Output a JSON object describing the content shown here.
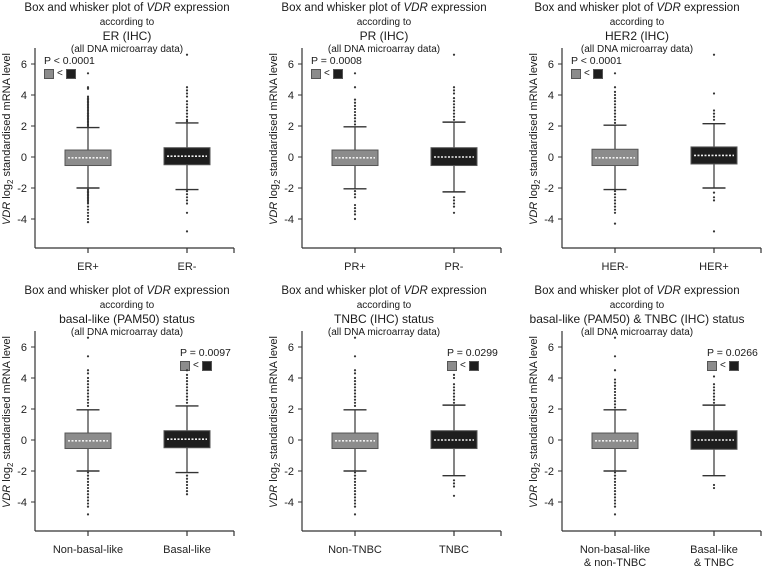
{
  "colors": {
    "group1": "#8c8c8c",
    "group2": "#1e1e1e",
    "median": "#f0f0f0",
    "axis": "#333333"
  },
  "common": {
    "title_prefix": "Box and whisker plot of ",
    "title_gene": "VDR",
    "title_suffix": " expression",
    "according": "according to",
    "dataset": "(all DNA microarray data)",
    "ylabel_gene": "VDR",
    "ylabel_log": " log",
    "ylabel_sub": "2",
    "ylabel_rest": " standardised mRNA level",
    "legend_lt": "<"
  },
  "chart_data": [
    {
      "type": "box",
      "subtitle": "ER (IHC)",
      "ylabel": "VDR log2 standardised mRNA level",
      "yticks": [
        6,
        4,
        2,
        0,
        -2,
        -4
      ],
      "ylim": [
        -5.9,
        7
      ],
      "pvalue": "P < 0.0001",
      "legend_position": "top-left",
      "categories": [
        "ER+",
        "ER-"
      ],
      "groups": [
        {
          "name": "ER+",
          "median": -0.05,
          "q1": -0.55,
          "q3": 0.45,
          "whisker_low": -2.0,
          "whisker_high": 1.9,
          "outliers": [
            5.4,
            4.5,
            4.4,
            3.9,
            3.8,
            3.7,
            3.6,
            3.5,
            3.4,
            3.3,
            3.2,
            3.1,
            3.0,
            2.9,
            2.8,
            2.7,
            2.6,
            2.5,
            2.4,
            2.3,
            2.2,
            2.1,
            2.0,
            -2.1,
            -2.2,
            -2.3,
            -2.4,
            -2.5,
            -2.6,
            -2.7,
            -2.8,
            -2.9,
            -3.0,
            -3.2,
            -3.4,
            -3.6,
            -3.8,
            -4.0,
            -4.2
          ]
        },
        {
          "name": "ER-",
          "median": 0.05,
          "q1": -0.5,
          "q3": 0.6,
          "whisker_low": -2.1,
          "whisker_high": 2.2,
          "outliers": [
            6.6,
            4.5,
            4.3,
            4.1,
            3.9,
            3.6,
            3.4,
            3.2,
            3.0,
            2.8,
            2.6,
            2.4,
            2.3,
            -2.2,
            -2.4,
            -2.6,
            -2.8,
            -3.0,
            -3.6,
            -4.8
          ]
        }
      ]
    },
    {
      "type": "box",
      "subtitle": "PR (IHC)",
      "ylabel": "VDR log2 standardised mRNA level",
      "yticks": [
        6,
        4,
        2,
        0,
        -2,
        -4
      ],
      "ylim": [
        -4.9,
        7
      ],
      "pvalue": "P = 0.0008",
      "legend_position": "top-left",
      "categories": [
        "PR+",
        "PR-"
      ],
      "groups": [
        {
          "name": "PR+",
          "median": -0.05,
          "q1": -0.55,
          "q3": 0.45,
          "whisker_low": -2.05,
          "whisker_high": 1.95,
          "outliers": [
            5.4,
            4.5,
            3.7,
            3.5,
            3.3,
            3.1,
            2.9,
            2.7,
            2.5,
            2.3,
            2.1,
            -2.2,
            -2.4,
            -2.6,
            -3.1,
            -3.3,
            -3.5,
            -3.7,
            -4.0
          ]
        },
        {
          "name": "PR-",
          "median": 0.0,
          "q1": -0.55,
          "q3": 0.6,
          "whisker_low": -2.25,
          "whisker_high": 2.25,
          "outliers": [
            6.6,
            4.5,
            4.3,
            4.1,
            3.8,
            3.6,
            3.4,
            3.2,
            3.0,
            2.8,
            2.6,
            2.4,
            -2.6,
            -2.8,
            -3.0,
            -3.2,
            -3.6
          ]
        }
      ]
    },
    {
      "type": "box",
      "subtitle": "HER2 (IHC)",
      "ylabel": "VDR log2 standardised mRNA level",
      "yticks": [
        6,
        4,
        2,
        0,
        -2,
        -4
      ],
      "ylim": [
        -5.9,
        7
      ],
      "pvalue": "P < 0.0001",
      "legend_position": "top-left",
      "categories": [
        "HER-",
        "HER+"
      ],
      "groups": [
        {
          "name": "HER-",
          "median": -0.05,
          "q1": -0.55,
          "q3": 0.5,
          "whisker_low": -2.1,
          "whisker_high": 2.05,
          "outliers": [
            5.4,
            4.5,
            4.2,
            4.0,
            3.8,
            3.6,
            3.4,
            3.2,
            3.0,
            2.8,
            2.6,
            2.4,
            2.2,
            -2.2,
            -2.4,
            -2.6,
            -2.8,
            -3.0,
            -3.2,
            -3.4,
            -3.6,
            -4.3
          ]
        },
        {
          "name": "HER+",
          "median": 0.1,
          "q1": -0.45,
          "q3": 0.65,
          "whisker_low": -2.0,
          "whisker_high": 2.15,
          "outliers": [
            6.6,
            4.1,
            3.0,
            2.8,
            2.6,
            2.4,
            -2.3,
            -2.6,
            -2.8,
            -4.8
          ]
        }
      ]
    },
    {
      "type": "box",
      "subtitle": "basal-like (PAM50) status",
      "ylabel": "VDR log2 standardised mRNA level",
      "yticks": [
        6,
        4,
        2,
        0,
        -2,
        -4
      ],
      "ylim": [
        -5.9,
        7
      ],
      "pvalue": "P = 0.0097",
      "legend_position": "top-right",
      "categories": [
        "Non-basal-like",
        "Basal-like"
      ],
      "groups": [
        {
          "name": "Non-basal-like",
          "median": -0.05,
          "q1": -0.55,
          "q3": 0.45,
          "whisker_low": -2.0,
          "whisker_high": 1.95,
          "outliers": [
            6.6,
            5.4,
            4.5,
            4.3,
            4.0,
            3.8,
            3.6,
            3.4,
            3.2,
            3.0,
            2.8,
            2.6,
            2.4,
            2.2,
            -2.1,
            -2.3,
            -2.5,
            -2.7,
            -2.9,
            -3.1,
            -3.3,
            -3.5,
            -3.7,
            -3.9,
            -4.1,
            -4.3,
            -4.8
          ]
        },
        {
          "name": "Basal-like",
          "median": 0.05,
          "q1": -0.5,
          "q3": 0.6,
          "whisker_low": -2.1,
          "whisker_high": 2.2,
          "outliers": [
            4.5,
            4.2,
            4.0,
            3.8,
            3.6,
            3.4,
            3.2,
            3.0,
            2.8,
            2.6,
            2.4,
            -2.3,
            -2.5,
            -2.7,
            -2.9,
            -3.1,
            -3.3,
            -3.5
          ]
        }
      ]
    },
    {
      "type": "box",
      "subtitle": "TNBC (IHC) status",
      "ylabel": "VDR log2 standardised mRNA level",
      "yticks": [
        6,
        4,
        2,
        0,
        -2,
        -4
      ],
      "ylim": [
        -5.9,
        7
      ],
      "pvalue": "P = 0.0299",
      "legend_position": "top-right",
      "categories": [
        "Non-TNBC",
        "TNBC"
      ],
      "groups": [
        {
          "name": "Non-TNBC",
          "median": -0.05,
          "q1": -0.55,
          "q3": 0.45,
          "whisker_low": -2.0,
          "whisker_high": 1.95,
          "outliers": [
            6.6,
            5.4,
            4.5,
            4.3,
            4.0,
            3.8,
            3.6,
            3.4,
            3.2,
            3.0,
            2.8,
            2.6,
            2.4,
            2.2,
            -2.1,
            -2.3,
            -2.5,
            -2.7,
            -2.9,
            -3.1,
            -3.3,
            -3.5,
            -3.7,
            -3.9,
            -4.1,
            -4.3,
            -4.8
          ]
        },
        {
          "name": "TNBC",
          "median": 0.0,
          "q1": -0.55,
          "q3": 0.6,
          "whisker_low": -2.3,
          "whisker_high": 2.25,
          "outliers": [
            4.2,
            4.0,
            3.6,
            3.4,
            3.2,
            3.0,
            2.8,
            2.6,
            2.4,
            -2.6,
            -2.8,
            -3.0,
            -3.6
          ]
        }
      ]
    },
    {
      "type": "box",
      "subtitle": "basal-like (PAM50) & TNBC (IHC) status",
      "ylabel": "VDR log2 standardised mRNA level",
      "yticks": [
        6,
        4,
        2,
        0,
        -2,
        -4
      ],
      "ylim": [
        -5.9,
        7
      ],
      "pvalue": "P = 0.0266",
      "legend_position": "top-right",
      "categories": [
        "Non-basal-like\n& non-TNBC",
        "Basal-like\n& TNBC"
      ],
      "groups": [
        {
          "name": "Non-basal-like & non-TNBC",
          "median": -0.05,
          "q1": -0.55,
          "q3": 0.45,
          "whisker_low": -2.0,
          "whisker_high": 1.95,
          "outliers": [
            6.6,
            5.4,
            4.5,
            3.9,
            3.7,
            3.5,
            3.3,
            3.1,
            2.9,
            2.7,
            2.5,
            2.3,
            2.1,
            -2.1,
            -2.3,
            -2.5,
            -2.7,
            -2.9,
            -3.1,
            -3.3,
            -3.5,
            -3.7,
            -3.9,
            -4.1,
            -4.3,
            -4.8
          ]
        },
        {
          "name": "Basal-like & TNBC",
          "median": 0.0,
          "q1": -0.6,
          "q3": 0.6,
          "whisker_low": -2.3,
          "whisker_high": 2.25,
          "outliers": [
            4.1,
            3.6,
            3.4,
            3.2,
            3.0,
            2.8,
            2.6,
            2.4,
            -2.9,
            -3.1
          ]
        }
      ]
    }
  ]
}
